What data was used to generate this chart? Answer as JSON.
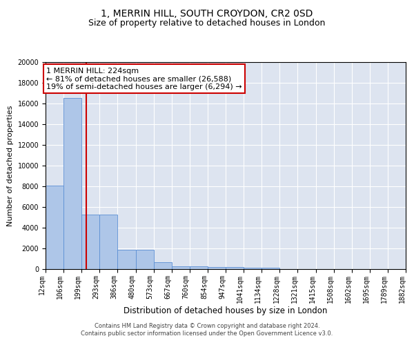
{
  "title1": "1, MERRIN HILL, SOUTH CROYDON, CR2 0SD",
  "title2": "Size of property relative to detached houses in London",
  "xlabel": "Distribution of detached houses by size in London",
  "ylabel": "Number of detached properties",
  "bar_values": [
    8100,
    16500,
    5300,
    5300,
    1850,
    1850,
    700,
    300,
    250,
    200,
    175,
    150,
    150,
    0,
    0,
    0,
    0,
    0,
    0,
    0
  ],
  "bin_edges": [
    12,
    106,
    199,
    293,
    386,
    480,
    573,
    667,
    760,
    854,
    947,
    1041,
    1134,
    1228,
    1321,
    1415,
    1508,
    1602,
    1695,
    1789,
    1882
  ],
  "tick_labels": [
    "12sqm",
    "106sqm",
    "199sqm",
    "293sqm",
    "386sqm",
    "480sqm",
    "573sqm",
    "667sqm",
    "760sqm",
    "854sqm",
    "947sqm",
    "1041sqm",
    "1134sqm",
    "1228sqm",
    "1321sqm",
    "1415sqm",
    "1508sqm",
    "1602sqm",
    "1695sqm",
    "1789sqm",
    "1882sqm"
  ],
  "bar_color": "#aec6e8",
  "bar_edge_color": "#5b8fd4",
  "vertical_line_x": 224,
  "vertical_line_color": "#cc0000",
  "annotation_text": "1 MERRIN HILL: 224sqm\n← 81% of detached houses are smaller (26,588)\n19% of semi-detached houses are larger (6,294) →",
  "annotation_box_color": "#ffffff",
  "annotation_box_edge": "#cc0000",
  "ylim": [
    0,
    20000
  ],
  "yticks": [
    0,
    2000,
    4000,
    6000,
    8000,
    10000,
    12000,
    14000,
    16000,
    18000,
    20000
  ],
  "background_color": "#dde4f0",
  "footer_text": "Contains HM Land Registry data © Crown copyright and database right 2024.\nContains public sector information licensed under the Open Government Licence v3.0.",
  "title1_fontsize": 10,
  "title2_fontsize": 9,
  "xlabel_fontsize": 8.5,
  "ylabel_fontsize": 8,
  "tick_fontsize": 7,
  "annotation_fontsize": 8,
  "footer_fontsize": 6
}
